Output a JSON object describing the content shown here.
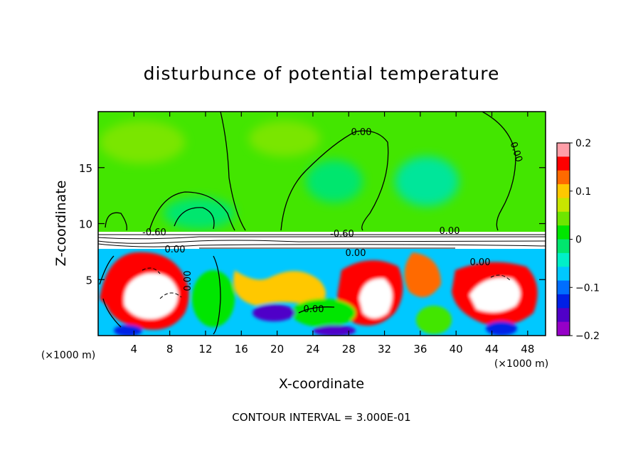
{
  "chart_data": {
    "type": "heatmap",
    "title": "disturbunce of potential temperature",
    "xlabel": "X-coordinate",
    "ylabel": "Z-coordinate",
    "x_unit_left": "(×1000 m)",
    "x_unit_right": "(×1000 m)",
    "x_ticks": [
      "4",
      "8",
      "12",
      "16",
      "20",
      "24",
      "28",
      "32",
      "36",
      "40",
      "44",
      "48"
    ],
    "x_tick_values": [
      4,
      8,
      12,
      16,
      20,
      24,
      28,
      32,
      36,
      40,
      44,
      48
    ],
    "y_ticks": [
      "5",
      "10",
      "15"
    ],
    "y_tick_values": [
      5,
      10,
      15
    ],
    "xlim": [
      0,
      50
    ],
    "ylim": [
      0,
      20
    ],
    "contour_interval_text": "CONTOUR INTERVAL = 3.000E-01",
    "contour_labels": [
      "0.00",
      "0.00",
      "-0.60",
      "0.00",
      "-0.60",
      "0.00",
      "0.00",
      "0.00",
      "0.00",
      "0.00"
    ],
    "colorbar": {
      "ticks": [
        "0.2",
        "0.1",
        "0",
        "−0.1",
        "−0.2"
      ],
      "tick_values": [
        0.2,
        0.1,
        0,
        -0.1,
        -0.2
      ],
      "range": [
        -0.2,
        0.2
      ],
      "colors": [
        "#ff9ea8",
        "#ff0000",
        "#ff6a00",
        "#ffc800",
        "#c8e600",
        "#6ee600",
        "#00e600",
        "#00e66e",
        "#00f0c8",
        "#00c8ff",
        "#006eff",
        "#0020e6",
        "#5000c8",
        "#9600c8"
      ]
    }
  }
}
